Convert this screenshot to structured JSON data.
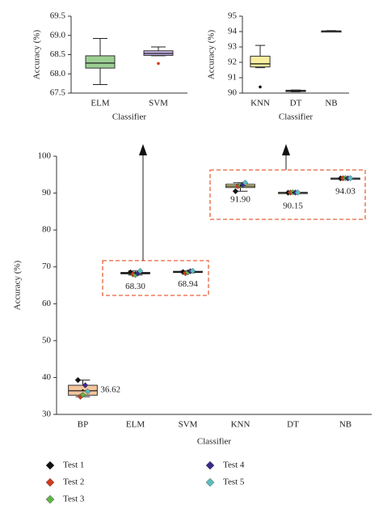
{
  "chart_data": [
    {
      "type": "box",
      "xlabel": "Classifier",
      "ylabel": "Accuracy (%)",
      "categories": [
        "ELM",
        "SVM"
      ],
      "ylim": [
        67.5,
        69.5
      ],
      "yticks": [
        67.5,
        {
          "value": 68,
          "label": "68.0"
        },
        68.5,
        {
          "value": 69,
          "label": "69.0"
        },
        69.5
      ],
      "boxes": [
        {
          "low": 67.72,
          "q1": 68.15,
          "median": 68.28,
          "q3": 68.47,
          "high": 68.92,
          "color": "#9ccf94"
        },
        {
          "low": 68.47,
          "q1": 68.48,
          "median": 68.53,
          "q3": 68.6,
          "high": 68.7,
          "color": "#c3b1e6"
        }
      ],
      "outliers": [
        {
          "category": 1,
          "value": 68.27,
          "color": "#d03a1c"
        }
      ]
    },
    {
      "type": "box",
      "xlabel": "Classifier",
      "ylabel": "Accuracy (%)",
      "categories": [
        "KNN",
        "DT",
        "NB"
      ],
      "ylim": [
        90,
        95
      ],
      "yticks": [
        90,
        91,
        92,
        93,
        94,
        95
      ],
      "boxes": [
        {
          "low": 91.65,
          "q1": 91.7,
          "median": 91.9,
          "q3": 92.4,
          "high": 93.1,
          "color": "#f8ef9f"
        },
        {
          "low": 90.08,
          "q1": 90.1,
          "median": 90.15,
          "q3": 90.18,
          "high": 90.2,
          "color": "#f8ef9f"
        },
        {
          "low": 93.98,
          "q1": 94.0,
          "median": 94.03,
          "q3": 94.04,
          "high": 94.06,
          "color": "#c3b1e6"
        }
      ],
      "outliers": [
        {
          "category": 0,
          "value": 90.4,
          "color": "#111111"
        }
      ]
    },
    {
      "type": "box",
      "xlabel": "Classifier",
      "ylabel": "Accuracy (%)",
      "categories": [
        "BP",
        "ELM",
        "SVM",
        "KNN",
        "DT",
        "NB"
      ],
      "ylim": [
        30,
        100
      ],
      "yticks": [
        30,
        40,
        50,
        60,
        70,
        80,
        90,
        100
      ],
      "boxes": [
        {
          "low": 34.8,
          "q1": 35.2,
          "median": 36.4,
          "q3": 37.9,
          "high": 39.3,
          "color": "#f4c49c"
        },
        {
          "low": 67.8,
          "q1": 68.1,
          "median": 68.3,
          "q3": 68.5,
          "high": 68.9,
          "color": "#9ccf94"
        },
        {
          "low": 68.4,
          "q1": 68.5,
          "median": 68.6,
          "q3": 68.8,
          "high": 68.9,
          "color": "#c3b1e6"
        },
        {
          "low": 90.5,
          "q1": 91.5,
          "median": 91.9,
          "q3": 92.4,
          "high": 92.8,
          "color": "#f8ef9f"
        },
        {
          "low": 90.1,
          "q1": 90.12,
          "median": 90.15,
          "q3": 90.18,
          "high": 90.2,
          "color": "#f8ef9f"
        },
        {
          "low": 93.98,
          "q1": 94.0,
          "median": 94.03,
          "q3": 94.04,
          "high": 94.06,
          "color": "#c3b1e6"
        }
      ],
      "values": [
        36.62,
        68.3,
        68.94,
        91.9,
        90.15,
        94.03
      ],
      "value_labels": [
        "36.62",
        "68.30",
        "68.94",
        "91.90",
        "90.15",
        "94.03"
      ],
      "series": [
        {
          "name": "Test 1",
          "color": "#111111",
          "values": [
            39.3,
            68.5,
            68.6,
            90.5,
            90.1,
            94.0
          ]
        },
        {
          "name": "Test 2",
          "color": "#d03a1c",
          "values": [
            34.8,
            68.0,
            68.3,
            91.9,
            90.15,
            94.03
          ]
        },
        {
          "name": "Test 3",
          "color": "#5fb446",
          "values": [
            35.3,
            67.8,
            68.5,
            92.1,
            90.2,
            94.05
          ]
        },
        {
          "name": "Test 4",
          "color": "#3a2a8c",
          "values": [
            37.9,
            68.2,
            68.8,
            92.3,
            90.15,
            94.0
          ]
        },
        {
          "name": "Test 5",
          "color": "#5bbcc0",
          "values": [
            36.2,
            68.9,
            68.9,
            92.8,
            90.15,
            94.05
          ]
        }
      ]
    }
  ]
}
